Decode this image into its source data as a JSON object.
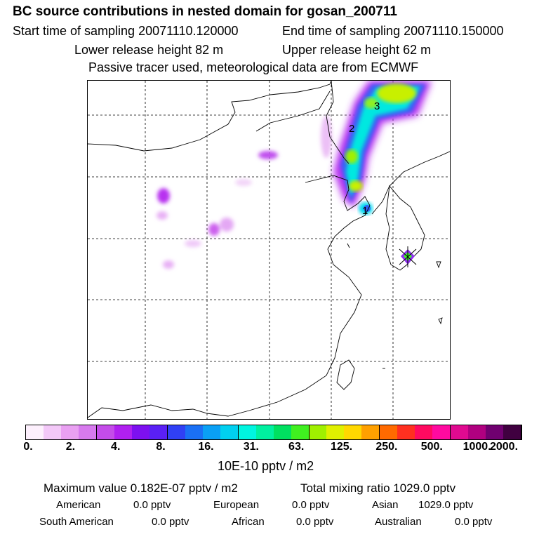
{
  "header": {
    "title": "BC  source contributions in nested domain for gosan_200711",
    "start_label": "Start time of sampling 20071110.120000",
    "end_label": "End time of sampling 20071110.150000",
    "lower_label": "Lower release height   82 m",
    "upper_label": "Upper release height   62 m",
    "note": "Passive tracer used, meteorological data are from ECMWF"
  },
  "map": {
    "labels": [
      "1",
      "2",
      "3"
    ],
    "colorbar_colors": [
      "#fdf0fd",
      "#f3c8f8",
      "#e9a0f2",
      "#d77aee",
      "#c44ce9",
      "#b020f0",
      "#7d10f0",
      "#5a20f5",
      "#3040f5",
      "#1a70f5",
      "#0aa0f5",
      "#00d0f0",
      "#00f5e0",
      "#00f0a0",
      "#00e060",
      "#40f020",
      "#a0f000",
      "#e0f000",
      "#ffd800",
      "#ffa000",
      "#ff6a00",
      "#ff3020",
      "#ff0a60",
      "#ff0aa0",
      "#e00a90",
      "#b00080",
      "#700070",
      "#400040"
    ],
    "tick_labels": [
      "0.",
      "2.",
      "4.",
      "8.",
      "16.",
      "31.",
      "63.",
      "125.",
      "250.",
      "500.",
      "1000.",
      "2000."
    ],
    "unit_label": "10E-10 pptv / m2"
  },
  "stats": {
    "max_value": "Maximum value  0.182E-07 pptv / m2",
    "total_mixing": "Total mixing ratio     1029.0 pptv",
    "american": "American",
    "american_val": "0.0 pptv",
    "european": "European",
    "european_val": "0.0 pptv",
    "asian": "Asian",
    "asian_val": "1029.0 pptv",
    "south_american": "South American",
    "south_american_val": "0.0 pptv",
    "african": "African",
    "african_val": "0.0 pptv",
    "australian": "Australian",
    "australian_val": "0.0 pptv"
  }
}
